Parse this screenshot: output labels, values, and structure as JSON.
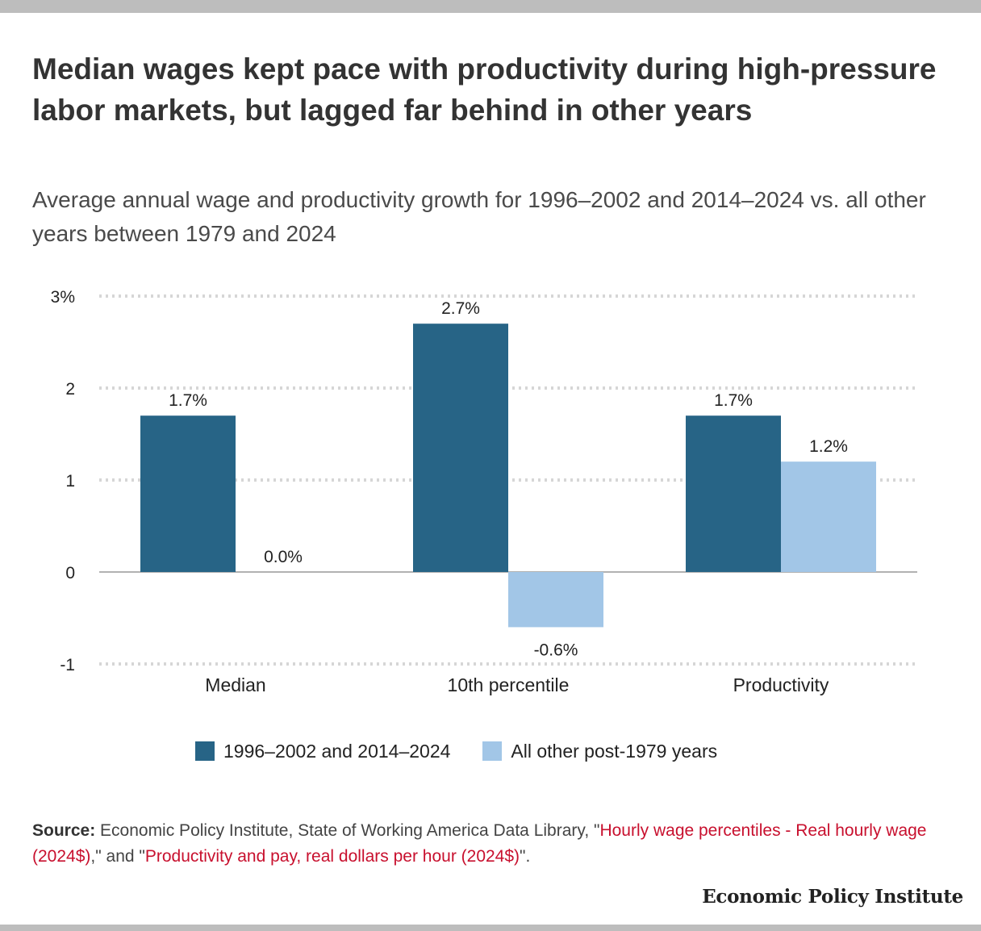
{
  "title": "Median wages kept pace with productivity during high-pressure labor markets, but lagged far behind in other years",
  "subtitle": "Average annual wage and productivity growth for 1996–2002 and 2014–2024 vs. all other years between 1979 and 2024",
  "chart_data": {
    "type": "bar",
    "categories": [
      "Median",
      "10th percentile",
      "Productivity"
    ],
    "series": [
      {
        "name": "1996–2002 and 2014–2024",
        "values": [
          1.7,
          2.7,
          1.7
        ],
        "labels": [
          "1.7%",
          "2.7%",
          "1.7%"
        ],
        "color": "#276486"
      },
      {
        "name": "All other post-1979 years",
        "values": [
          0.0,
          -0.6,
          1.2
        ],
        "labels": [
          "0.0%",
          "-0.6%",
          "1.2%"
        ],
        "color": "#a2c6e7"
      }
    ],
    "ylim": [
      -1,
      3
    ],
    "yticks": [
      3,
      2,
      1,
      0,
      -1
    ],
    "ytick_labels": [
      "3%",
      "2",
      "1",
      "0",
      "-1"
    ],
    "grid": true,
    "legend_position": "bottom"
  },
  "source": {
    "label": "Source:",
    "text1": " Economic Policy Institute, State of Working America Data Library, \"",
    "link1": "Hourly wage percentiles - Real hourly wage (2024$)",
    "text2": ",\" and \"",
    "link2": "Productivity and pay, real dollars per hour (2024$)",
    "text3": "\"."
  },
  "logo": "Economic Policy Institute"
}
